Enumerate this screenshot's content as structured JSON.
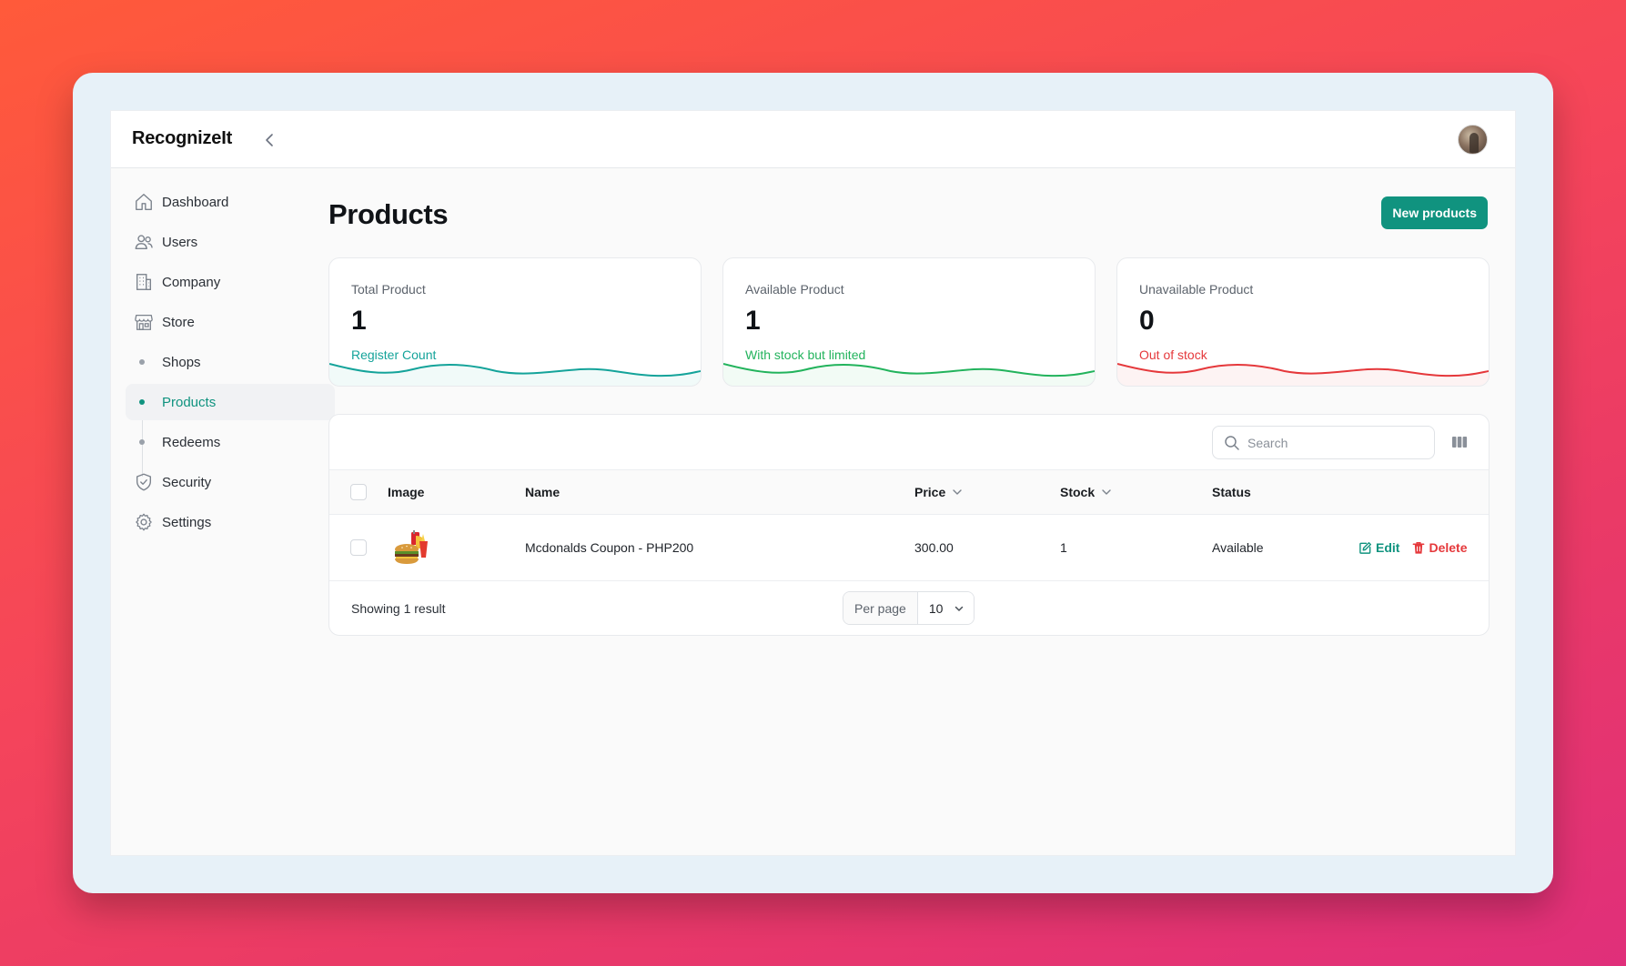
{
  "app": {
    "brand": "RecognizeIt"
  },
  "sidebar": {
    "items": [
      {
        "label": "Dashboard",
        "icon": "home-icon"
      },
      {
        "label": "Users",
        "icon": "users-icon"
      },
      {
        "label": "Company",
        "icon": "building-icon"
      },
      {
        "label": "Store",
        "icon": "store-icon"
      },
      {
        "label": "Shops",
        "icon": "dot"
      },
      {
        "label": "Products",
        "icon": "dot",
        "active": true
      },
      {
        "label": "Redeems",
        "icon": "dot"
      },
      {
        "label": "Security",
        "icon": "shield-icon"
      },
      {
        "label": "Settings",
        "icon": "gear-icon"
      }
    ]
  },
  "page": {
    "title": "Products",
    "new_button": "New products"
  },
  "stats": [
    {
      "label": "Total Product",
      "value": "1",
      "desc": "Register Count",
      "color": "#14a39a"
    },
    {
      "label": "Available Product",
      "value": "1",
      "desc": "With stock but limited",
      "color": "#22b35c"
    },
    {
      "label": "Unavailable Product",
      "value": "0",
      "desc": "Out of stock",
      "color": "#e5383b"
    }
  ],
  "table": {
    "search_placeholder": "Search",
    "columns": {
      "image": "Image",
      "name": "Name",
      "price": "Price",
      "stock": "Stock",
      "status": "Status"
    },
    "rows": [
      {
        "image": "burger-meal-image",
        "name": "Mcdonalds Coupon - PHP200",
        "price": "300.00",
        "stock": "1",
        "status": "Available",
        "edit": "Edit",
        "delete": "Delete"
      }
    ],
    "footer": {
      "showing": "Showing 1 result",
      "per_page_label": "Per page",
      "per_page_value": "10"
    }
  },
  "colors": {
    "accent": "#10937f",
    "danger": "#e5383b",
    "edit": "#10937f"
  }
}
